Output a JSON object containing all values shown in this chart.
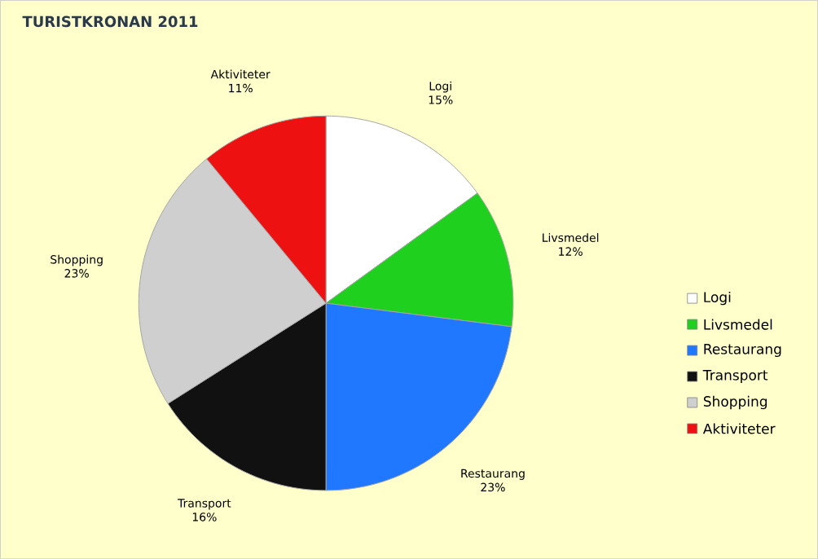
{
  "chart_data": {
    "type": "pie",
    "title": "TURISTKRONAN 2011",
    "categories": [
      "Logi",
      "Livsmedel",
      "Restaurang",
      "Transport",
      "Shopping",
      "Aktiviteter"
    ],
    "values": [
      15,
      12,
      23,
      16,
      23,
      11
    ],
    "value_labels": [
      "15%",
      "12%",
      "23%",
      "16%",
      "23%",
      "11%"
    ],
    "colors": [
      "#ffffff",
      "#1fd01f",
      "#1f78ff",
      "#111111",
      "#cfcfcf",
      "#ee1111"
    ],
    "legend": "right"
  }
}
